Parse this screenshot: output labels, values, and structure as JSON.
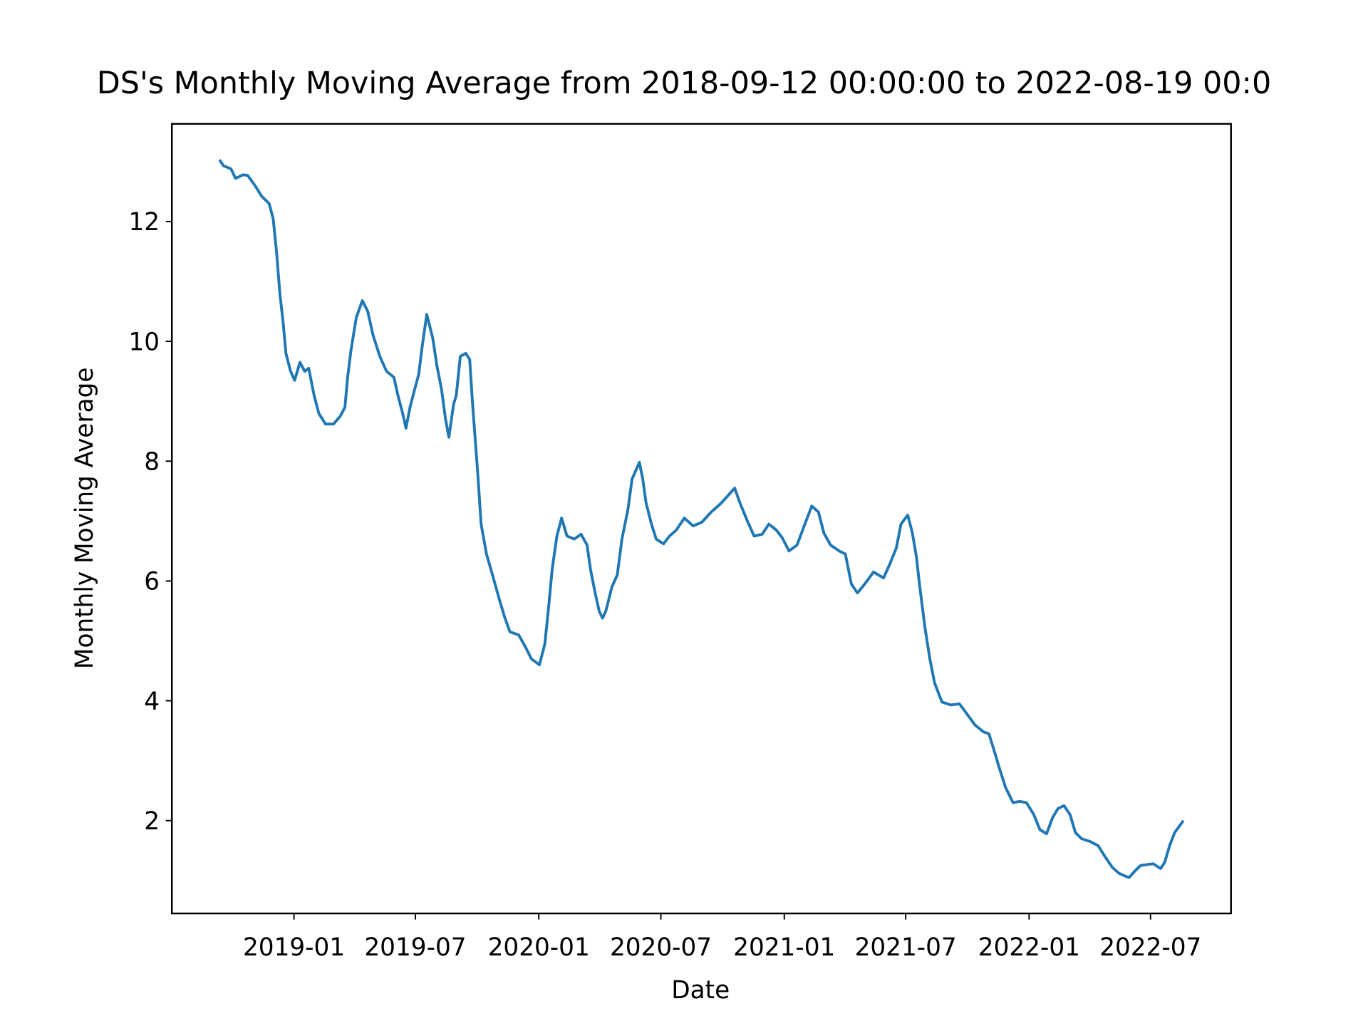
{
  "chart_data": {
    "type": "line",
    "title": "DS's Monthly Moving Average from 2018-09-12 00:00:00 to 2022-08-19 00:0",
    "x_label": "Date",
    "y_label": "Monthly Moving Average",
    "color": "#1f77b4",
    "grid": false,
    "xlim": [
      "2018-07-03",
      "2022-10-29"
    ],
    "xticks": [
      "2019-01",
      "2019-07",
      "2020-01",
      "2020-07",
      "2021-01",
      "2021-07",
      "2022-01",
      "2022-07"
    ],
    "ylim": [
      0.45,
      13.63
    ],
    "yticks": [
      2,
      4,
      6,
      8,
      10,
      12
    ],
    "x": [
      "2018-09-12",
      "2018-09-18",
      "2018-09-29",
      "2018-10-06",
      "2018-10-17",
      "2018-10-24",
      "2018-11-04",
      "2018-11-14",
      "2018-11-25",
      "2018-12-01",
      "2018-12-06",
      "2018-12-11",
      "2018-12-16",
      "2018-12-20",
      "2018-12-27",
      "2019-01-02",
      "2019-01-10",
      "2019-01-17",
      "2019-01-23",
      "2019-01-31",
      "2019-02-07",
      "2019-02-17",
      "2019-03-01",
      "2019-03-11",
      "2019-03-18",
      "2019-03-22",
      "2019-03-27",
      "2019-04-04",
      "2019-04-13",
      "2019-04-21",
      "2019-04-29",
      "2019-05-09",
      "2019-05-19",
      "2019-05-30",
      "2019-06-05",
      "2019-06-12",
      "2019-06-17",
      "2019-06-23",
      "2019-06-30",
      "2019-07-06",
      "2019-07-11",
      "2019-07-18",
      "2019-07-27",
      "2019-08-02",
      "2019-08-09",
      "2019-08-15",
      "2019-08-20",
      "2019-08-27",
      "2019-08-31",
      "2019-09-06",
      "2019-09-14",
      "2019-09-20",
      "2019-09-24",
      "2019-10-02",
      "2019-10-07",
      "2019-10-15",
      "2019-10-24",
      "2019-11-03",
      "2019-11-11",
      "2019-11-19",
      "2019-12-02",
      "2019-12-12",
      "2019-12-21",
      "2020-01-02",
      "2020-01-10",
      "2020-01-16",
      "2020-01-21",
      "2020-01-28",
      "2020-02-04",
      "2020-02-12",
      "2020-02-23",
      "2020-03-04",
      "2020-03-13",
      "2020-03-18",
      "2020-03-25",
      "2020-03-31",
      "2020-04-05",
      "2020-04-10",
      "2020-04-19",
      "2020-04-27",
      "2020-05-04",
      "2020-05-13",
      "2020-05-19",
      "2020-05-30",
      "2020-06-04",
      "2020-06-09",
      "2020-06-17",
      "2020-06-24",
      "2020-07-05",
      "2020-07-14",
      "2020-07-24",
      "2020-08-05",
      "2020-08-18",
      "2020-08-31",
      "2020-09-14",
      "2020-09-29",
      "2020-10-19",
      "2020-10-27",
      "2020-11-07",
      "2020-11-17",
      "2020-11-29",
      "2020-12-09",
      "2020-12-20",
      "2020-12-29",
      "2021-01-08",
      "2021-01-20",
      "2021-01-30",
      "2021-02-11",
      "2021-02-21",
      "2021-03-01",
      "2021-03-11",
      "2021-03-24",
      "2021-04-02",
      "2021-04-11",
      "2021-04-20",
      "2021-05-01",
      "2021-05-14",
      "2021-05-29",
      "2021-06-08",
      "2021-06-17",
      "2021-06-24",
      "2021-07-04",
      "2021-07-11",
      "2021-07-17",
      "2021-07-22",
      "2021-07-30",
      "2021-08-06",
      "2021-08-13",
      "2021-08-24",
      "2021-09-06",
      "2021-09-19",
      "2021-09-29",
      "2021-10-12",
      "2021-10-25",
      "2021-11-02",
      "2021-11-09",
      "2021-11-17",
      "2021-11-27",
      "2021-12-08",
      "2021-12-18",
      "2021-12-28",
      "2022-01-08",
      "2022-01-17",
      "2022-01-27",
      "2022-02-05",
      "2022-02-13",
      "2022-02-22",
      "2022-03-03",
      "2022-03-11",
      "2022-03-20",
      "2022-04-02",
      "2022-04-14",
      "2022-04-24",
      "2022-05-05",
      "2022-05-15",
      "2022-05-25",
      "2022-05-30",
      "2022-06-07",
      "2022-06-16",
      "2022-06-28",
      "2022-07-05",
      "2022-07-16",
      "2022-07-22",
      "2022-07-30",
      "2022-08-06",
      "2022-08-19"
    ],
    "values": [
      13.03,
      12.93,
      12.88,
      12.72,
      12.78,
      12.77,
      12.6,
      12.42,
      12.3,
      12.05,
      11.5,
      10.8,
      10.3,
      9.8,
      9.5,
      9.35,
      9.65,
      9.5,
      9.55,
      9.1,
      8.8,
      8.62,
      8.62,
      8.75,
      8.9,
      9.4,
      9.85,
      10.4,
      10.68,
      10.5,
      10.1,
      9.75,
      9.5,
      9.4,
      9.1,
      8.8,
      8.55,
      8.9,
      9.2,
      9.45,
      9.9,
      10.45,
      10.05,
      9.6,
      9.2,
      8.7,
      8.4,
      8.95,
      9.1,
      9.75,
      9.8,
      9.7,
      9.0,
      7.8,
      6.95,
      6.45,
      6.1,
      5.7,
      5.4,
      5.15,
      5.1,
      4.9,
      4.7,
      4.6,
      4.95,
      5.6,
      6.2,
      6.75,
      7.05,
      6.75,
      6.7,
      6.78,
      6.6,
      6.2,
      5.8,
      5.5,
      5.38,
      5.5,
      5.9,
      6.1,
      6.7,
      7.2,
      7.7,
      7.98,
      7.7,
      7.3,
      6.95,
      6.7,
      6.62,
      6.75,
      6.85,
      7.05,
      6.92,
      6.98,
      7.15,
      7.3,
      7.55,
      7.3,
      7.0,
      6.75,
      6.78,
      6.95,
      6.85,
      6.72,
      6.5,
      6.6,
      6.9,
      7.25,
      7.15,
      6.8,
      6.6,
      6.5,
      6.45,
      5.95,
      5.8,
      5.95,
      6.15,
      6.05,
      6.3,
      6.55,
      6.95,
      7.1,
      6.8,
      6.4,
      5.9,
      5.2,
      4.7,
      4.3,
      3.98,
      3.93,
      3.95,
      3.8,
      3.6,
      3.48,
      3.45,
      3.2,
      2.9,
      2.55,
      2.3,
      2.32,
      2.3,
      2.1,
      1.85,
      1.78,
      2.05,
      2.2,
      2.25,
      2.1,
      1.8,
      1.7,
      1.65,
      1.58,
      1.4,
      1.22,
      1.12,
      1.07,
      1.05,
      1.15,
      1.25,
      1.27,
      1.28,
      1.2,
      1.3,
      1.6,
      1.8,
      2.0
    ]
  }
}
